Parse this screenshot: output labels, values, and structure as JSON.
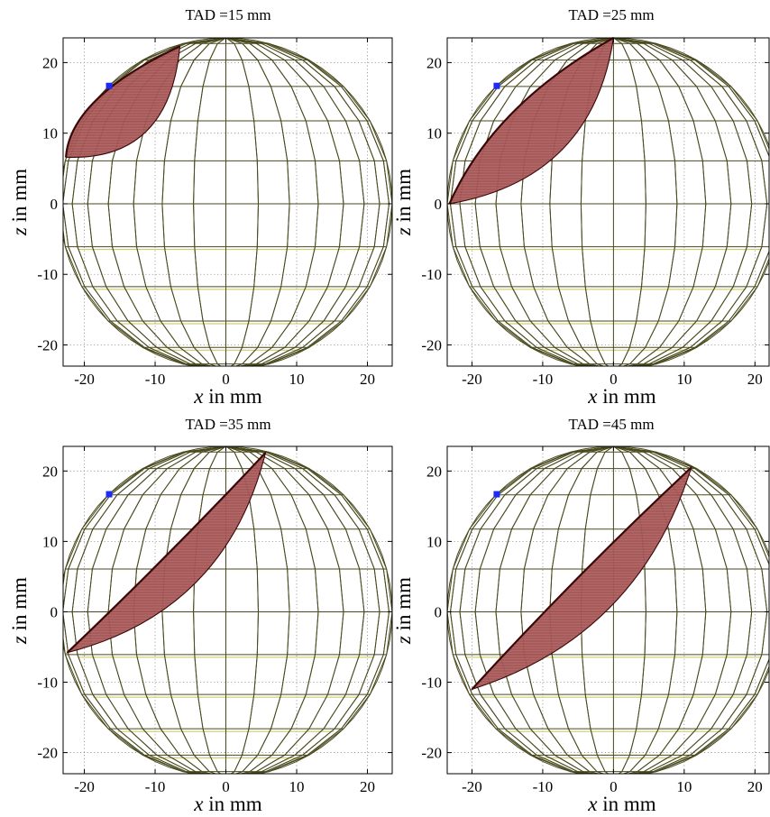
{
  "chart_data": [
    {
      "type": "wireframe-3d-projection",
      "title": "TAD =15 mm",
      "xlabel_var": "x",
      "xlabel_unit": " in mm",
      "ylabel_var": "z",
      "ylabel_unit": " in mm",
      "xlim": [
        -23,
        23.5
      ],
      "ylim": [
        -23,
        23.5
      ],
      "xticks": [
        -20,
        -10,
        0,
        10,
        20
      ],
      "yticks": [
        -20,
        -10,
        0,
        10,
        20
      ],
      "grid": true,
      "sphere_radius": 23.5,
      "marker": {
        "x": -16.5,
        "z": 16.7
      },
      "surface": {
        "start": {
          "x": -22.6,
          "z": 6.6
        },
        "end": {
          "x": -6.5,
          "z": 22.3
        },
        "upper_ctrl": {
          "x": -22.0,
          "z": 15.0
        },
        "lower_ctrl": {
          "x": -8.0,
          "z": 6.0
        }
      }
    },
    {
      "type": "wireframe-3d-projection",
      "title": "TAD =25 mm",
      "xlabel_var": "x",
      "xlabel_unit": " in mm",
      "ylabel_var": "z",
      "ylabel_unit": " in mm",
      "xlim": [
        -23.5,
        22
      ],
      "ylim": [
        -23,
        23.5
      ],
      "xticks": [
        -20,
        -10,
        0,
        10,
        20
      ],
      "yticks": [
        -20,
        -10,
        0,
        10,
        20
      ],
      "grid": true,
      "sphere_radius": 23.5,
      "marker": {
        "x": -16.5,
        "z": 16.7
      },
      "surface": {
        "start": {
          "x": -23.2,
          "z": 0.0
        },
        "end": {
          "x": 0.0,
          "z": 23.5
        },
        "upper_ctrl": {
          "x": -17.0,
          "z": 14.0
        },
        "lower_ctrl": {
          "x": -3.0,
          "z": 3.5
        }
      }
    },
    {
      "type": "wireframe-3d-projection",
      "title": "TAD =35 mm",
      "xlabel_var": "x",
      "xlabel_unit": " in mm",
      "ylabel_var": "z",
      "ylabel_unit": " in mm",
      "xlim": [
        -23,
        23.5
      ],
      "ylim": [
        -23,
        23.5
      ],
      "xticks": [
        -20,
        -10,
        0,
        10,
        20
      ],
      "yticks": [
        -20,
        -10,
        0,
        10,
        20
      ],
      "grid": true,
      "sphere_radius": 23.5,
      "marker": {
        "x": -16.5,
        "z": 16.7
      },
      "surface": {
        "start": {
          "x": -22.4,
          "z": -5.8
        },
        "end": {
          "x": 5.6,
          "z": 22.6
        },
        "upper_ctrl": {
          "x": -8.0,
          "z": 8.0
        },
        "lower_ctrl": {
          "x": 0.0,
          "z": 0.0
        }
      }
    },
    {
      "type": "wireframe-3d-projection",
      "title": "TAD =45 mm",
      "xlabel_var": "x",
      "xlabel_unit": " in mm",
      "ylabel_var": "z",
      "ylabel_unit": " in mm",
      "xlim": [
        -23.5,
        22
      ],
      "ylim": [
        -23,
        23.5
      ],
      "xticks": [
        -20,
        -10,
        0,
        10,
        20
      ],
      "yticks": [
        -20,
        -10,
        0,
        10,
        20
      ],
      "grid": true,
      "sphere_radius": 23.5,
      "marker": {
        "x": -16.5,
        "z": 16.7
      },
      "surface": {
        "start": {
          "x": -20.0,
          "z": -11.0
        },
        "end": {
          "x": 11.0,
          "z": 20.5
        },
        "upper_ctrl": {
          "x": -5.0,
          "z": 5.5
        },
        "lower_ctrl": {
          "x": 3.5,
          "z": -3.5
        }
      }
    }
  ],
  "colors": {
    "wire_dark": "#4a4a1e",
    "wire_light": "#c8c35a",
    "surface_fill": "#9e5454",
    "surface_stripe": "#c86464",
    "surface_edge": "#3a0808",
    "marker": "#1f2bf2",
    "grid": "#8c8c8c",
    "axes": "#000000"
  }
}
